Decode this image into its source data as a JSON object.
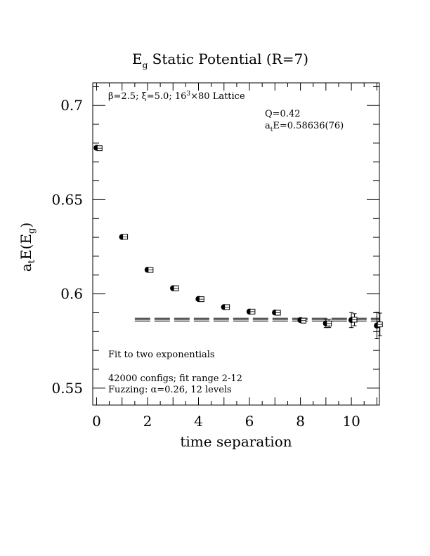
{
  "chart_data": {
    "type": "scatter",
    "title_main": "E",
    "title_sub": "g",
    "title_rest": " Static Potential (R=7)",
    "xlabel": "time separation",
    "ylabel_parts": {
      "a": "a",
      "t": "t",
      "e": "E(E",
      "g": "g",
      "close": ")"
    },
    "xlim": [
      -0.15,
      11.1
    ],
    "ylim": [
      0.541,
      0.712
    ],
    "x_ticks": [
      0,
      2,
      4,
      6,
      8,
      10
    ],
    "x_tick_labels": [
      "0",
      "2",
      "4",
      "6",
      "8",
      "10"
    ],
    "y_ticks": [
      0.55,
      0.6,
      0.65,
      0.7
    ],
    "y_tick_labels": [
      "0.55",
      "0.6",
      "0.65",
      "0.7"
    ],
    "lattice_line": {
      "beta": "β=2.5; ξ=5.0; 16",
      "exp": "3",
      "rest": "×80 Lattice"
    },
    "fit_q": "Q=0.42",
    "fit_energy": {
      "a": "a",
      "t": "t",
      "rest": "E=0.58636(76)"
    },
    "fit_method": "Fit to two exponentials",
    "configs_line": "42000 configs; fit range 2-12",
    "fuzzing_line": "Fuzzing: α=0.26, 12 levels",
    "series": [
      {
        "marker": "filled-circle",
        "x": [
          0,
          1,
          2,
          3,
          4,
          5,
          6,
          7,
          8,
          9,
          10,
          11
        ],
        "y": [
          0.6775,
          0.6302,
          0.6128,
          0.603,
          0.5973,
          0.593,
          0.5906,
          0.5901,
          0.5861,
          0.5843,
          0.5861,
          0.5832
        ],
        "err": [
          0.0006,
          0.0006,
          0.0006,
          0.0006,
          0.0006,
          0.0006,
          0.0007,
          0.0007,
          0.001,
          0.0022,
          0.004,
          0.007
        ]
      },
      {
        "marker": "open-square",
        "x": [
          0.12,
          1.12,
          2.12,
          3.12,
          4.12,
          5.12,
          6.12,
          7.12,
          8.12,
          9.12,
          10.12,
          11.12
        ],
        "y": [
          0.6773,
          0.6303,
          0.6127,
          0.603,
          0.5972,
          0.593,
          0.5906,
          0.59,
          0.5858,
          0.5843,
          0.5863,
          0.5838
        ],
        "err": [
          0.0006,
          0.0006,
          0.0006,
          0.0006,
          0.0006,
          0.0006,
          0.0007,
          0.0007,
          0.001,
          0.0022,
          0.0032,
          0.006
        ]
      }
    ],
    "fit_band": {
      "x_start": 1.5,
      "x_end": 11.1,
      "center": 0.58636,
      "error": 0.00076
    }
  }
}
